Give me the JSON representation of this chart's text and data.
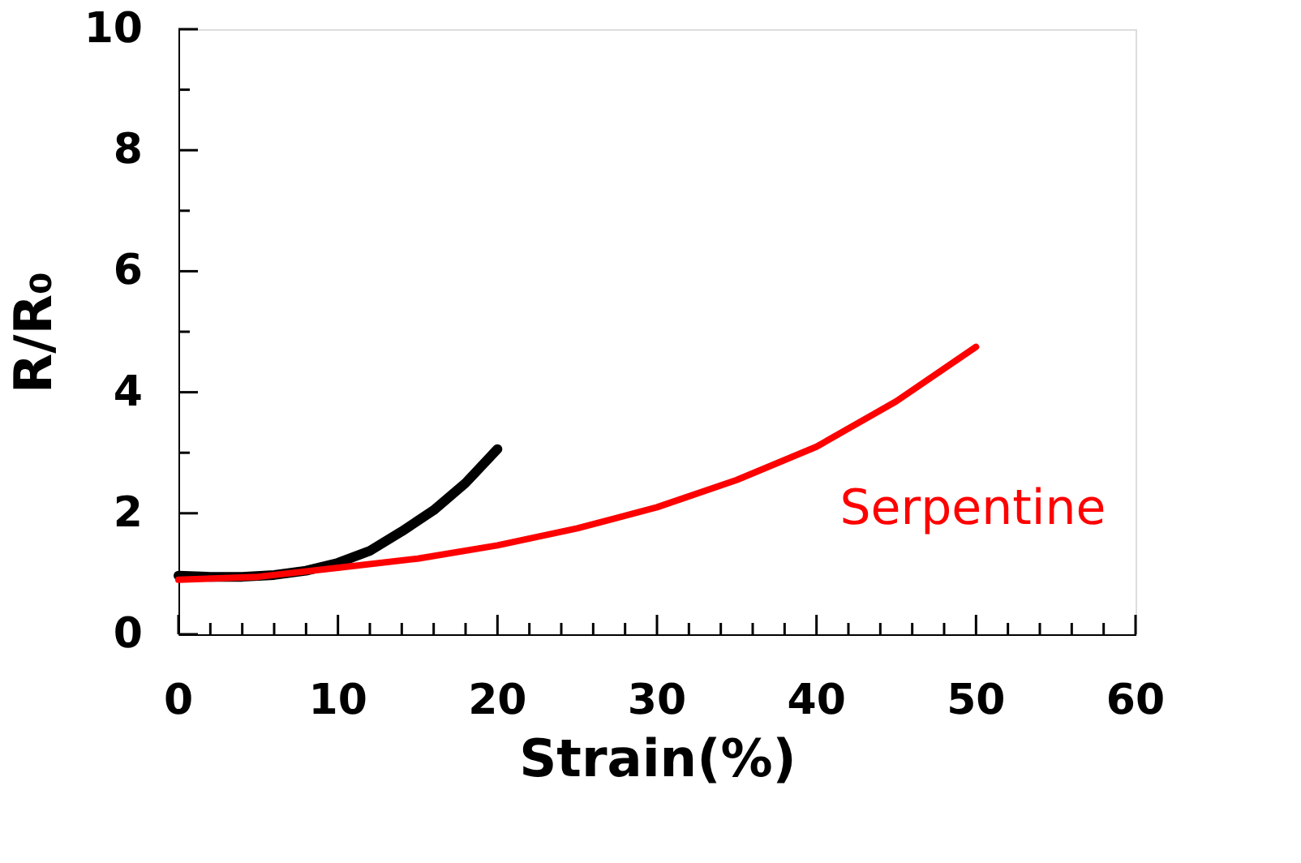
{
  "chart_data": {
    "type": "line",
    "xlabel": "Strain(%)",
    "ylabel": "R/R₀",
    "xlim": [
      0,
      60
    ],
    "ylim": [
      0,
      10
    ],
    "xticks": [
      0,
      {
        "value": 2,
        "label": null
      },
      {
        "value": 4,
        "label": null
      },
      {
        "value": 6,
        "label": null
      },
      {
        "value": 8,
        "label": null
      },
      10,
      {
        "value": 12,
        "label": null
      },
      {
        "value": 14,
        "label": null
      },
      {
        "value": 16,
        "label": null
      },
      {
        "value": 18,
        "label": null
      },
      20,
      {
        "value": 22,
        "label": null
      },
      {
        "value": 24,
        "label": null
      },
      {
        "value": 26,
        "label": null
      },
      {
        "value": 28,
        "label": null
      },
      30,
      {
        "value": 32,
        "label": null
      },
      {
        "value": 34,
        "label": null
      },
      {
        "value": 36,
        "label": null
      },
      {
        "value": 38,
        "label": null
      },
      40,
      {
        "value": 42,
        "label": null
      },
      {
        "value": 44,
        "label": null
      },
      {
        "value": 46,
        "label": null
      },
      {
        "value": 48,
        "label": null
      },
      50,
      {
        "value": 52,
        "label": null
      },
      {
        "value": 54,
        "label": null
      },
      {
        "value": 56,
        "label": null
      },
      {
        "value": 58,
        "label": null
      },
      60
    ],
    "yticks": [
      0,
      {
        "value": 1,
        "label": null
      },
      2,
      {
        "value": 3,
        "label": null
      },
      4,
      {
        "value": 5,
        "label": null
      },
      6,
      {
        "value": 7,
        "label": null
      },
      8,
      {
        "value": 9,
        "label": null
      },
      10
    ],
    "grid": false,
    "marker": "none",
    "line_style": "solid",
    "series": [
      {
        "color": "#000000",
        "x": [
          0,
          2,
          4,
          6,
          8,
          10,
          12,
          14,
          16,
          18,
          20
        ],
        "values": [
          0.97,
          0.95,
          0.95,
          0.98,
          1.05,
          1.18,
          1.38,
          1.7,
          2.05,
          2.5,
          3.06
        ]
      },
      {
        "name": "Serpentine",
        "color": "#ff0000",
        "x": [
          0,
          5,
          10,
          15,
          20,
          25,
          30,
          35,
          40,
          45,
          50
        ],
        "values": [
          0.9,
          0.95,
          1.1,
          1.25,
          1.47,
          1.75,
          2.1,
          2.55,
          3.1,
          3.85,
          4.75
        ]
      }
    ]
  }
}
